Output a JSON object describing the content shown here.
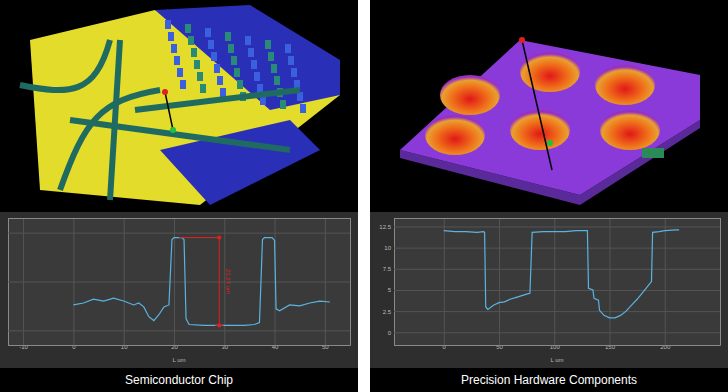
{
  "chart_data": [
    {
      "type": "line",
      "title": "Semiconductor Chip",
      "x_label": "L um",
      "x": [
        0,
        2,
        4,
        6,
        8,
        10,
        12,
        13,
        14,
        15,
        16,
        17,
        18,
        19,
        19.6,
        20,
        21.5,
        22,
        22.4,
        23,
        26,
        30,
        34,
        36,
        37,
        37.6,
        38,
        39.5,
        40,
        40.3,
        41,
        43,
        45,
        47,
        49,
        51
      ],
      "series": [
        {
          "color": "#5ab4e0",
          "values": [
            2.6,
            2.8,
            3.2,
            3.0,
            3.3,
            3.0,
            2.6,
            2.8,
            2.4,
            1.4,
            1.0,
            1.6,
            2.4,
            2.6,
            9.3,
            9.5,
            9.5,
            9.3,
            1.2,
            0.6,
            0.5,
            0.5,
            0.5,
            0.6,
            0.8,
            9.3,
            9.5,
            9.5,
            9.2,
            2.2,
            2.0,
            2.6,
            2.5,
            2.8,
            3.0,
            2.9
          ]
        }
      ],
      "xlim": [
        -13,
        55
      ],
      "xticks": [
        -10,
        0,
        10,
        20,
        30,
        40,
        50
      ],
      "ylim": [
        -1.5,
        11.5
      ],
      "yticks": [
        0,
        5,
        10
      ],
      "grid": true,
      "tick_labels": "x",
      "annotations": [
        {
          "text": "23.24 um",
          "x": 29,
          "y": [
            0.5,
            9.5
          ]
        }
      ]
    },
    {
      "type": "line",
      "title": "Precision Hardware Components",
      "x_label": "L um",
      "x": [
        0,
        10,
        20,
        30,
        36,
        37,
        38,
        40,
        45,
        50,
        55,
        60,
        65,
        70,
        75,
        78,
        80,
        90,
        100,
        110,
        120,
        130,
        131,
        135,
        136,
        140,
        141,
        145,
        150,
        155,
        160,
        165,
        170,
        175,
        180,
        185,
        188,
        189,
        195,
        200,
        210,
        213
      ],
      "series": [
        {
          "color": "#5ab4e0",
          "values": [
            12,
            11.9,
            11.9,
            11.8,
            11.9,
            11.8,
            3.0,
            2.7,
            3.2,
            3.5,
            3.6,
            3.9,
            4.1,
            4.3,
            4.5,
            4.6,
            11.8,
            11.9,
            11.9,
            11.9,
            12,
            12,
            5.2,
            5.0,
            4.0,
            3.8,
            2.6,
            2.0,
            1.7,
            1.7,
            2.0,
            2.5,
            3.2,
            3.9,
            4.7,
            5.5,
            6.0,
            11.8,
            11.9,
            12,
            12.1,
            12.1
          ]
        }
      ],
      "xlim": [
        -45,
        250
      ],
      "xticks": [
        0,
        50,
        100,
        150,
        200
      ],
      "ylim": [
        -1.5,
        13.5
      ],
      "yticks": [
        0,
        2.5,
        5,
        7.5,
        10,
        12.5
      ],
      "grid": true
    }
  ]
}
